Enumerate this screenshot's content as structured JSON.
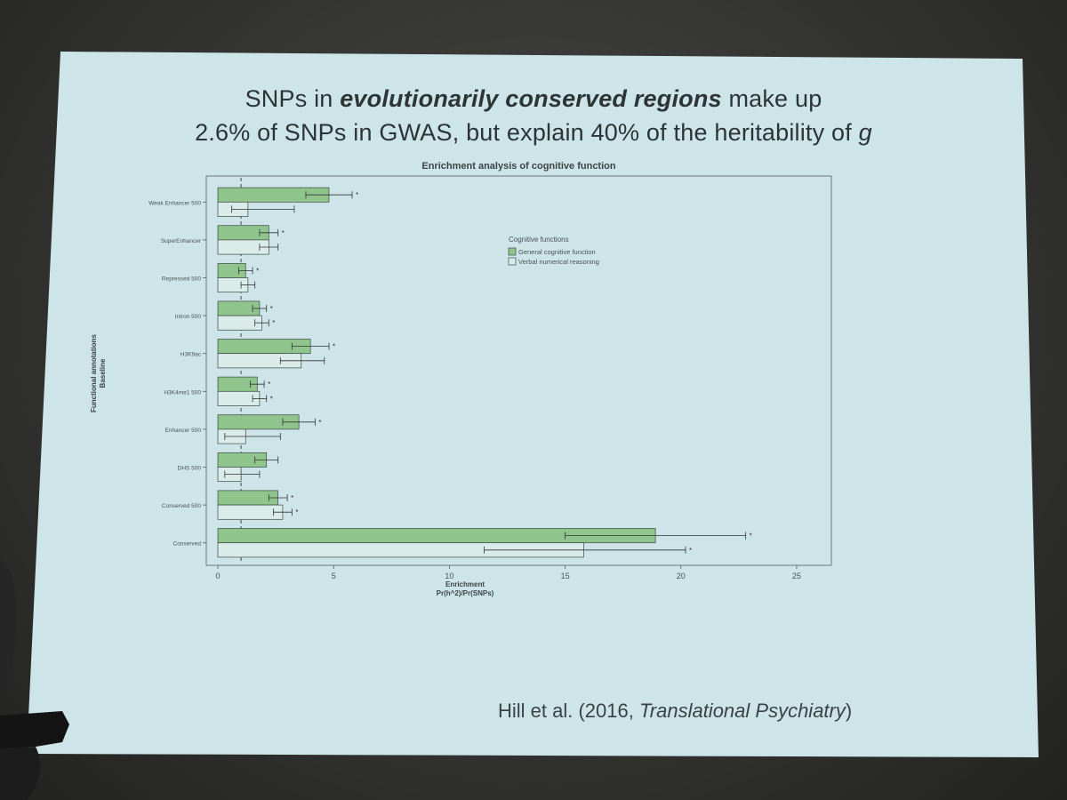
{
  "slide": {
    "title_line1_pre": "SNPs in ",
    "title_line1_em": "evolutionarily conserved regions",
    "title_line1_post": " make up",
    "title_line2_pre": "2.6% of SNPs in GWAS, but explain 40% of the heritability of ",
    "title_line2_em": "g",
    "citation_pre": "Hill et al. (2016, ",
    "citation_em": "Translational Psychiatry",
    "citation_post": ")"
  },
  "colors": {
    "slide_bg": "#cfe5ea",
    "general_bar": "#8fc48c",
    "verbal_bar": "#d9ecea",
    "bar_stroke": "#3d4a44",
    "axis": "#555c5c"
  },
  "chart_data": {
    "type": "bar",
    "orientation": "horizontal",
    "title": "Enrichment analysis of cognitive function",
    "xlabel_line1": "Enrichment",
    "xlabel_line2": "Pr(h^2)/Pr(SNPs)",
    "ylabel_line1": "Functional annotations",
    "ylabel_line2": "Baseline",
    "xlim": [
      -0.5,
      26.5
    ],
    "xticks": [
      "0",
      "5",
      "10",
      "15",
      "20",
      "25"
    ],
    "reference_line": 1,
    "legend_title": "Cognitive functions",
    "legend_position": "upper-middle",
    "categories": [
      "Weak Enhancer 500",
      "SuperEnhancer",
      "Repressed 500",
      "Intron 500",
      "H3K9ac",
      "H3K4me1 500",
      "Enhancer 500",
      "DHS 500",
      "Conserved 500",
      "Conserved"
    ],
    "series": [
      {
        "name": "General cognitive function",
        "values": [
          4.8,
          2.2,
          1.2,
          1.8,
          4.0,
          1.7,
          3.5,
          2.1,
          2.6,
          18.9
        ],
        "err_low": [
          3.8,
          1.8,
          0.9,
          1.5,
          3.2,
          1.4,
          2.8,
          1.6,
          2.2,
          15.0
        ],
        "err_high": [
          5.8,
          2.6,
          1.5,
          2.1,
          4.8,
          2.0,
          4.2,
          2.6,
          3.0,
          22.8
        ],
        "significant": [
          true,
          true,
          true,
          true,
          true,
          true,
          true,
          false,
          true,
          true
        ]
      },
      {
        "name": "Verbal numerical reasoning",
        "values": [
          1.3,
          2.2,
          1.3,
          1.9,
          3.6,
          1.8,
          1.2,
          1.0,
          2.8,
          15.8
        ],
        "err_low": [
          0.6,
          1.8,
          1.0,
          1.6,
          2.7,
          1.5,
          0.3,
          0.3,
          2.4,
          11.5
        ],
        "err_high": [
          3.3,
          2.6,
          1.6,
          2.2,
          4.6,
          2.1,
          2.7,
          1.8,
          3.2,
          20.2
        ],
        "significant": [
          false,
          false,
          false,
          true,
          false,
          true,
          false,
          false,
          true,
          true
        ]
      }
    ]
  }
}
